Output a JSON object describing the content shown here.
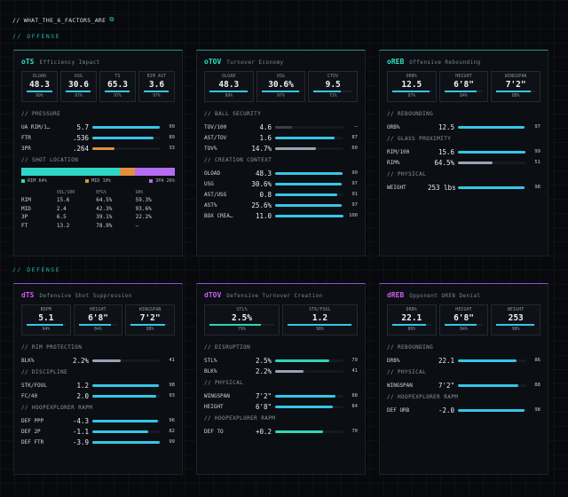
{
  "heading": {
    "title": "// WHAT_THE_6_FACTORS_ARE",
    "icon": "external-link-icon"
  },
  "colors": {
    "accent_offense": "#2fe0c8",
    "accent_defense": "#d05cf2",
    "bar_cyan": "#36c6e6",
    "bar_teal": "#2fd6b8",
    "bar_orange": "#e1913d",
    "bar_gray": "#9aa3b5",
    "bar_dark": "#3a414a"
  },
  "sections": {
    "offense": "// OFFENSE",
    "defense": "// DEFENSE"
  },
  "cards": {
    "ots": {
      "code": "oTS",
      "title": "Efficiency Impact",
      "tiles": [
        {
          "label": "OLOAD",
          "value": "48.3",
          "pct": "99%",
          "frac": 0.99
        },
        {
          "label": "USG",
          "value": "30.6",
          "pct": "97%",
          "frac": 0.97
        },
        {
          "label": "TS",
          "value": "65.3",
          "pct": "97%",
          "frac": 0.97
        },
        {
          "label": "RIM AST",
          "value": "3.6",
          "pct": "97%",
          "frac": 0.97
        }
      ],
      "groups": [
        {
          "title": "// PRESSURE",
          "rows": [
            {
              "label": "UA RIM/1…",
              "value": "5.7",
              "pct": "99",
              "frac": 0.99,
              "color": "#36c6e6"
            },
            {
              "label": "FTR",
              "value": ".536",
              "pct": "89",
              "frac": 0.89,
              "color": "#36c6e6"
            },
            {
              "label": "3PR",
              "value": ".264",
              "pct": "33",
              "frac": 0.33,
              "color": "#e1913d"
            }
          ]
        }
      ],
      "shot_location": {
        "title": "// SHOT LOCATION",
        "segments": [
          {
            "label": "RIM 64%",
            "frac": 0.64,
            "color": "#2fd6c8"
          },
          {
            "label": "MID 10%",
            "frac": 0.1,
            "color": "#e1913d"
          },
          {
            "label": "3PA 26%",
            "frac": 0.26,
            "color": "#b56cf0"
          }
        ],
        "headers": [
          "",
          "VOL/100",
          "EFG%",
          "UA%"
        ],
        "rows": [
          [
            "RIM",
            "15.6",
            "64.5%",
            "59.3%"
          ],
          [
            "MID",
            "2.4",
            "42.3%",
            "93.6%"
          ],
          [
            "3P",
            "6.5",
            "39.1%",
            "22.2%"
          ],
          [
            "FT",
            "13.2",
            "78.9%",
            "—"
          ]
        ]
      }
    },
    "otov": {
      "code": "oTOV",
      "title": "Turnover Economy",
      "tiles": [
        {
          "label": "OLOAD",
          "value": "48.3",
          "pct": "99%",
          "frac": 0.99
        },
        {
          "label": "USG",
          "value": "30.6%",
          "pct": "97%",
          "frac": 0.97
        },
        {
          "label": "CTOV",
          "value": "9.5",
          "pct": "71%",
          "frac": 0.71
        }
      ],
      "groups": [
        {
          "title": "// BALL SECURITY",
          "rows": [
            {
              "label": "TOV/100",
              "value": "4.6",
              "pct": "—",
              "frac": 0.25,
              "color": "#3a414a"
            },
            {
              "label": "AST/TOV",
              "value": "1.6",
              "pct": "87",
              "frac": 0.87,
              "color": "#36c6e6"
            },
            {
              "label": "TOV%",
              "value": "14.7%",
              "pct": "60",
              "frac": 0.6,
              "color": "#9aa3b5"
            }
          ]
        },
        {
          "title": "// CREATION CONTEXT",
          "rows": [
            {
              "label": "OLOAD",
              "value": "48.3",
              "pct": "99",
              "frac": 0.99,
              "color": "#36c6e6"
            },
            {
              "label": "USG",
              "value": "30.6%",
              "pct": "97",
              "frac": 0.97,
              "color": "#36c6e6"
            },
            {
              "label": "AST/USG",
              "value": "0.8",
              "pct": "91",
              "frac": 0.91,
              "color": "#36c6e6"
            },
            {
              "label": "AST%",
              "value": "25.6%",
              "pct": "97",
              "frac": 0.97,
              "color": "#36c6e6"
            },
            {
              "label": "BOX CREA…",
              "value": "11.0",
              "pct": "100",
              "frac": 1.0,
              "color": "#36c6e6"
            }
          ]
        }
      ]
    },
    "oreb": {
      "code": "oREB",
      "title": "Offensive Rebounding",
      "tiles": [
        {
          "label": "ORB%",
          "value": "12.5",
          "pct": "97%",
          "frac": 0.97
        },
        {
          "label": "HEIGHT",
          "value": "6'8\"",
          "pct": "84%",
          "frac": 0.84
        },
        {
          "label": "WINGSPAN",
          "value": "7'2\"",
          "pct": "88%",
          "frac": 0.88
        }
      ],
      "groups": [
        {
          "title": "// REBOUNDING",
          "rows": [
            {
              "label": "ORB%",
              "value": "12.5",
              "pct": "97",
              "frac": 0.97,
              "color": "#36c6e6"
            }
          ]
        },
        {
          "title": "// GLASS PROXIMITY",
          "rows": [
            {
              "label": "RIM/100",
              "value": "15.6",
              "pct": "99",
              "frac": 0.99,
              "color": "#36c6e6"
            },
            {
              "label": "RIM%",
              "value": "64.5%",
              "pct": "51",
              "frac": 0.51,
              "color": "#9aa3b5"
            }
          ]
        },
        {
          "title": "// PHYSICAL",
          "rows": [
            {
              "label": "WEIGHT",
              "value": "253 lbs",
              "pct": "98",
              "frac": 0.98,
              "color": "#36c6e6"
            }
          ]
        }
      ]
    },
    "dts": {
      "code": "dTS",
      "title": "Defensive Shot Suppression",
      "tiles": [
        {
          "label": "BDPM",
          "value": "5.1",
          "pct": "94%",
          "frac": 0.94
        },
        {
          "label": "HEIGHT",
          "value": "6'8\"",
          "pct": "84%",
          "frac": 0.84
        },
        {
          "label": "WINGSPAN",
          "value": "7'2\"",
          "pct": "88%",
          "frac": 0.88
        }
      ],
      "groups": [
        {
          "title": "// RIM PROTECTION",
          "rows": [
            {
              "label": "BLK%",
              "value": "2.2%",
              "pct": "41",
              "frac": 0.41,
              "color": "#9aa3b5"
            }
          ]
        },
        {
          "title": "// DISCIPLINE",
          "rows": [
            {
              "label": "STK/FOUL",
              "value": "1.2",
              "pct": "98",
              "frac": 0.98,
              "color": "#36c6e6"
            },
            {
              "label": "FC/40",
              "value": "2.0",
              "pct": "93",
              "frac": 0.93,
              "color": "#36c6e6"
            }
          ]
        },
        {
          "title": "// HOOPEXPLORER RAPM",
          "rows": [
            {
              "label": "DEF PPP",
              "value": "-4.3",
              "pct": "96",
              "frac": 0.96,
              "color": "#36c6e6"
            },
            {
              "label": "DEF 2P",
              "value": "-1.1",
              "pct": "82",
              "frac": 0.82,
              "color": "#36c6e6"
            },
            {
              "label": "DEF FTR",
              "value": "-3.9",
              "pct": "99",
              "frac": 0.99,
              "color": "#36c6e6"
            }
          ]
        }
      ]
    },
    "dtov": {
      "code": "dTOV",
      "title": "Defensive Turnover Creation",
      "tiles": [
        {
          "label": "STL%",
          "value": "2.5%",
          "pct": "79%",
          "frac": 0.79,
          "color": "#2fd6b8"
        },
        {
          "label": "STK/FOUL",
          "value": "1.2",
          "pct": "98%",
          "frac": 0.98
        }
      ],
      "groups": [
        {
          "title": "// DISRUPTION",
          "rows": [
            {
              "label": "STL%",
              "value": "2.5%",
              "pct": "79",
              "frac": 0.79,
              "color": "#2fd6b8"
            },
            {
              "label": "BLK%",
              "value": "2.2%",
              "pct": "41",
              "frac": 0.41,
              "color": "#9aa3b5"
            }
          ]
        },
        {
          "title": "// PHYSICAL",
          "rows": [
            {
              "label": "WINGSPAN",
              "value": "7'2\"",
              "pct": "88",
              "frac": 0.88,
              "color": "#36c6e6"
            },
            {
              "label": "HEIGHT",
              "value": "6'8\"",
              "pct": "84",
              "frac": 0.84,
              "color": "#36c6e6"
            }
          ]
        },
        {
          "title": "// HOOPEXPLORER RAPM",
          "rows": [
            {
              "label": "DEF TO",
              "value": "+0.2",
              "pct": "70",
              "frac": 0.7,
              "color": "#2fd6b8"
            }
          ]
        }
      ]
    },
    "dreb": {
      "code": "dREB",
      "title": "Opponent OREB Denial",
      "tiles": [
        {
          "label": "DRB%",
          "value": "22.1",
          "pct": "86%",
          "frac": 0.86
        },
        {
          "label": "HEIGHT",
          "value": "6'8\"",
          "pct": "84%",
          "frac": 0.84
        },
        {
          "label": "WEIGHT",
          "value": "253",
          "pct": "98%",
          "frac": 0.98
        }
      ],
      "groups": [
        {
          "title": "// REBOUNDING",
          "rows": [
            {
              "label": "DRB%",
              "value": "22.1",
              "pct": "86",
              "frac": 0.86,
              "color": "#36c6e6"
            }
          ]
        },
        {
          "title": "// PHYSICAL",
          "rows": [
            {
              "label": "WINGSPAN",
              "value": "7'2\"",
              "pct": "88",
              "frac": 0.88,
              "color": "#36c6e6"
            }
          ]
        },
        {
          "title": "// HOOPEXPLORER RAPM",
          "rows": [
            {
              "label": "DEF ORB",
              "value": "-2.0",
              "pct": "98",
              "frac": 0.98,
              "color": "#36c6e6"
            }
          ]
        }
      ]
    }
  }
}
